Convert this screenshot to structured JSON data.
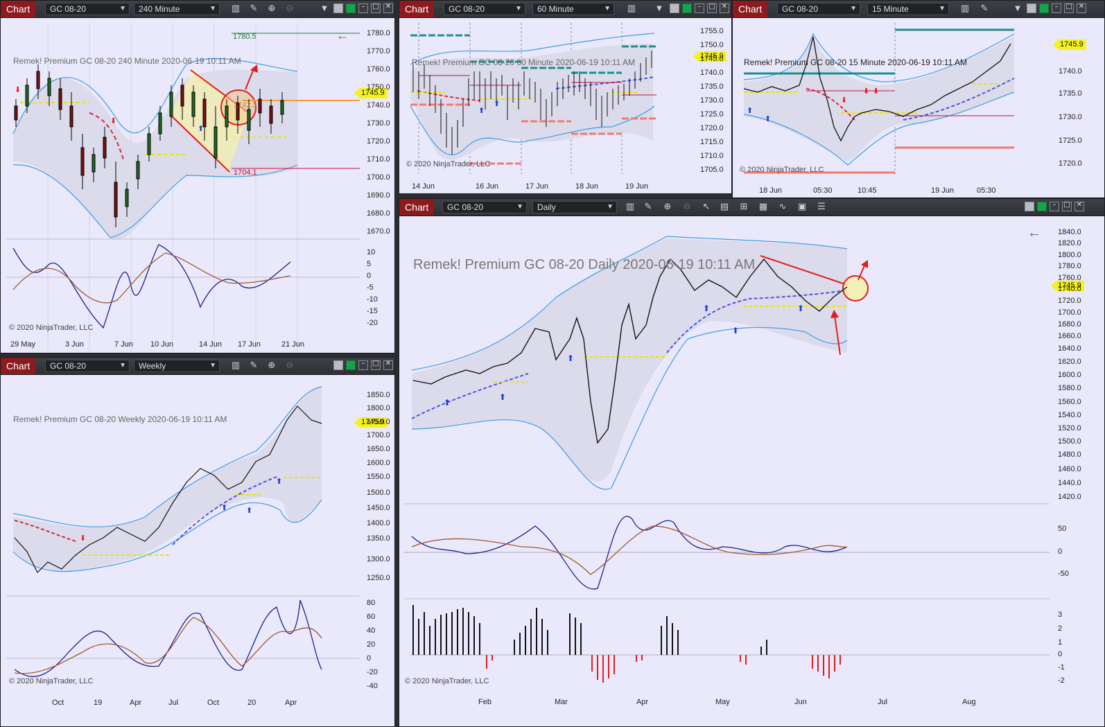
{
  "common": {
    "chart_tab": "Chart",
    "instrument": "GC 08-20",
    "price_tag": "1745.9",
    "copyright": "© 2020 NinjaTrader, LLC",
    "colors": {
      "tab_red": "#8b1b1e",
      "price_yellow": "#f4f21a",
      "band_blue": "#3e9be5",
      "chart_bg": "#eae9fb"
    }
  },
  "win240": {
    "interval": "240 Minute",
    "label": "Remek!  Premium  GC 08-20  240 Minute  2020-06-19 10:11 AM",
    "y_ticks": [
      "1780.0",
      "1770.0",
      "1760.0",
      "1750.0",
      "1740.0",
      "1730.0",
      "1720.0",
      "1710.0",
      "1700.0",
      "1690.0",
      "1680.0",
      "1670.0"
    ],
    "osc_ticks": [
      "10",
      "5",
      "0",
      "-5",
      "-10",
      "-15",
      "-20"
    ],
    "x_ticks": [
      "29 May",
      "3 Jun",
      "7 Jun",
      "10 Jun",
      "14 Jun",
      "17 Jun",
      "21 Jun"
    ],
    "level_top": "1780.5",
    "level_bottom": "1704.1",
    "level_mid": "1742.3"
  },
  "win60": {
    "interval": "60 Minute",
    "label": "Remek!  Premium  GC 08-20  60 Minute  2020-06-19 10:11 AM",
    "y_ticks": [
      "1755.0",
      "1750.0",
      "1745.0",
      "1740.0",
      "1735.0",
      "1730.0",
      "1725.0",
      "1720.0",
      "1715.0",
      "1710.0",
      "1705.0"
    ],
    "x_ticks": [
      "14 Jun",
      "16 Jun",
      "17 Jun",
      "18 Jun",
      "19 Jun"
    ]
  },
  "win15": {
    "interval": "15 Minute",
    "label": "Remek!  Premium  GC 08-20  15 Minute  2020-06-19 10:11 AM",
    "y_ticks": [
      "1740.0",
      "1735.0",
      "1730.0",
      "1725.0",
      "1720.0"
    ],
    "x_ticks": [
      "18 Jun",
      "05:30",
      "10:45",
      "19 Jun",
      "05:30"
    ]
  },
  "winDaily": {
    "interval": "Daily",
    "label": "Remek!  Premium  GC 08-20  Daily  2020-06-19 10:11 AM",
    "y_ticks": [
      "1840.0",
      "1820.0",
      "1800.0",
      "1780.0",
      "1760.0",
      "1740.0",
      "1720.0",
      "1700.0",
      "1680.0",
      "1660.0",
      "1640.0",
      "1620.0",
      "1600.0",
      "1580.0",
      "1560.0",
      "1540.0",
      "1520.0",
      "1500.0",
      "1480.0",
      "1460.0",
      "1440.0",
      "1420.0"
    ],
    "osc_ticks": [
      "50",
      "0",
      "-50"
    ],
    "hist_ticks": [
      "3",
      "2",
      "1",
      "0",
      "-1",
      "-2"
    ],
    "x_ticks": [
      "Feb",
      "Mar",
      "Apr",
      "May",
      "Jun",
      "Jul",
      "Aug"
    ]
  },
  "winWeekly": {
    "interval": "Weekly",
    "label": "Remek!  Premium  GC 08-20  Weekly  2020-06-19 10:11 AM",
    "y_ticks": [
      "1850.0",
      "1800.0",
      "1750.0",
      "1700.0",
      "1650.0",
      "1600.0",
      "1550.0",
      "1500.0",
      "1450.0",
      "1400.0",
      "1350.0",
      "1300.0",
      "1250.0"
    ],
    "osc_ticks": [
      "80",
      "60",
      "40",
      "20",
      "0",
      "-20",
      "-40"
    ],
    "x_ticks": [
      "Oct",
      "19",
      "Apr",
      "Jul",
      "Oct",
      "20",
      "Apr"
    ]
  }
}
